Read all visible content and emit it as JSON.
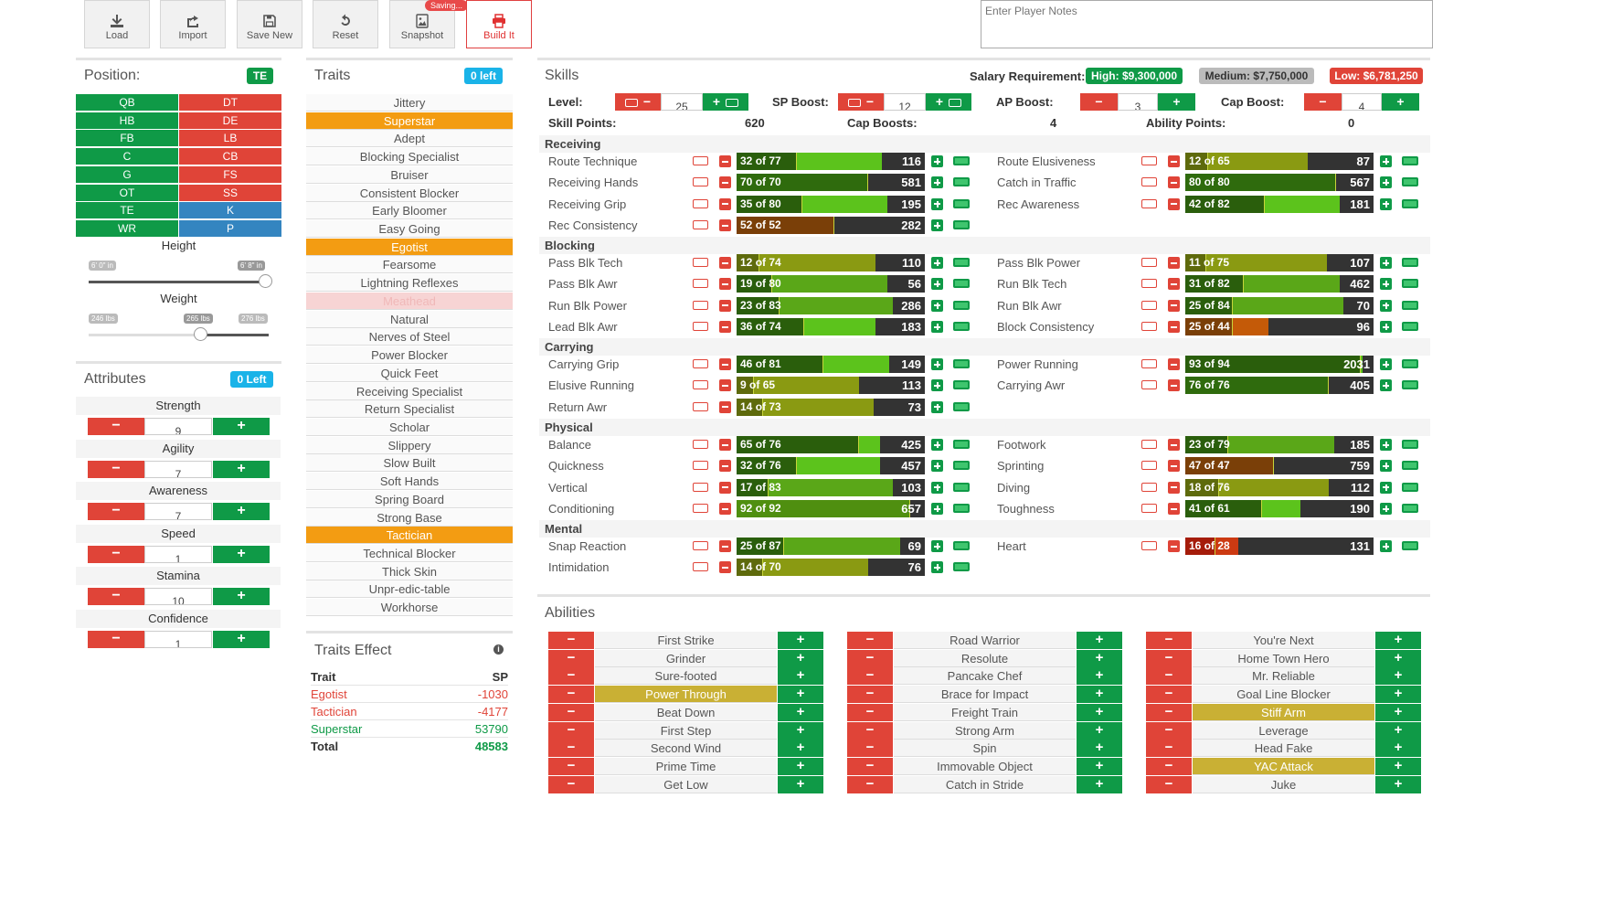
{
  "toolbar": {
    "buttons": [
      {
        "label": "Load",
        "icon": "download-icon"
      },
      {
        "label": "Import",
        "icon": "share-icon"
      },
      {
        "label": "Save New",
        "icon": "floppy-icon"
      },
      {
        "label": "Reset",
        "icon": "undo-icon"
      },
      {
        "label": "Snapshot",
        "icon": "image-icon"
      },
      {
        "label": "Build It",
        "icon": "printer-icon"
      }
    ],
    "saving_badge": "Saving...",
    "notes_placeholder": "Enter Player Notes"
  },
  "position": {
    "title": "Position:",
    "selected": "TE",
    "left": [
      "QB",
      "HB",
      "FB",
      "C",
      "G",
      "OT",
      "TE",
      "WR"
    ],
    "right": [
      "DT",
      "DE",
      "LB",
      "CB",
      "FS",
      "SS",
      "K",
      "P"
    ],
    "height_label": "Height",
    "height_min": "6' 0\" in",
    "height_max": "6' 8\" in",
    "height_fraction": 1.0,
    "weight_label": "Weight",
    "weight_min": "246 lbs",
    "weight_cur": "265 lbs",
    "weight_max": "276 lbs",
    "weight_fraction": 0.62
  },
  "attributes": {
    "title": "Attributes",
    "left_badge": "0 Left",
    "items": [
      {
        "name": "Strength",
        "value": "9"
      },
      {
        "name": "Agility",
        "value": "7"
      },
      {
        "name": "Awareness",
        "value": "7"
      },
      {
        "name": "Speed",
        "value": "1"
      },
      {
        "name": "Stamina",
        "value": "10"
      },
      {
        "name": "Confidence",
        "value": "1"
      }
    ]
  },
  "traits": {
    "title": "Traits",
    "left_badge": "0 left",
    "items": [
      {
        "name": "Jittery",
        "state": "off"
      },
      {
        "name": "Superstar",
        "state": "on"
      },
      {
        "name": "Adept",
        "state": "off"
      },
      {
        "name": "Blocking Specialist",
        "state": "off"
      },
      {
        "name": "Bruiser",
        "state": "off"
      },
      {
        "name": "Consistent Blocker",
        "state": "off"
      },
      {
        "name": "Early Bloomer",
        "state": "off"
      },
      {
        "name": "Easy Going",
        "state": "off"
      },
      {
        "name": "Egotist",
        "state": "on"
      },
      {
        "name": "Fearsome",
        "state": "off"
      },
      {
        "name": "Lightning Reflexes",
        "state": "off"
      },
      {
        "name": "Meathead",
        "state": "disabled"
      },
      {
        "name": "Natural",
        "state": "off"
      },
      {
        "name": "Nerves of Steel",
        "state": "off"
      },
      {
        "name": "Power Blocker",
        "state": "off"
      },
      {
        "name": "Quick Feet",
        "state": "off"
      },
      {
        "name": "Receiving Specialist",
        "state": "off"
      },
      {
        "name": "Return Specialist",
        "state": "off"
      },
      {
        "name": "Scholar",
        "state": "off"
      },
      {
        "name": "Slippery",
        "state": "off"
      },
      {
        "name": "Slow Built",
        "state": "off"
      },
      {
        "name": "Soft Hands",
        "state": "off"
      },
      {
        "name": "Spring Board",
        "state": "off"
      },
      {
        "name": "Strong Base",
        "state": "off"
      },
      {
        "name": "Tactician",
        "state": "on"
      },
      {
        "name": "Technical Blocker",
        "state": "off"
      },
      {
        "name": "Thick Skin",
        "state": "off"
      },
      {
        "name": "Unpr-edic-table",
        "state": "off"
      },
      {
        "name": "Workhorse",
        "state": "off"
      }
    ]
  },
  "traits_effect": {
    "title": "Traits Effect",
    "col_trait": "Trait",
    "col_sp": "SP",
    "rows": [
      {
        "trait": "Egotist",
        "sp": "-1030",
        "color": "#e04438"
      },
      {
        "trait": "Tactician",
        "sp": "-4177",
        "color": "#e04438"
      },
      {
        "trait": "Superstar",
        "sp": "53790",
        "color": "#0f9a47"
      }
    ],
    "total_label": "Total",
    "total_value": "48583"
  },
  "skills": {
    "title": "Skills",
    "salary_label": "Salary Requirement:",
    "salary_high": "High: $9,300,000",
    "salary_medium": "Medium: $7,750,000",
    "salary_low": "Low: $6,781,250",
    "level_label": "Level:",
    "level_value": "25",
    "sp_boost_label": "SP Boost:",
    "sp_boost_value": "12",
    "ap_boost_label": "AP Boost:",
    "ap_boost_value": "3",
    "cap_boost_label": "Cap Boost:",
    "cap_boost_value": "4",
    "skill_points_label": "Skill Points:",
    "skill_points_value": "620",
    "cap_boosts_label": "Cap Boosts:",
    "cap_boosts_value": "4",
    "ability_points_label": "Ability Points:",
    "ability_points_value": "0",
    "groups": [
      {
        "name": "Receiving",
        "left": [
          {
            "name": "Route Technique",
            "cur": 32,
            "cap": 77,
            "sp": "116"
          },
          {
            "name": "Receiving Hands",
            "cur": 70,
            "cap": 70,
            "sp": "581"
          },
          {
            "name": "Receiving Grip",
            "cur": 35,
            "cap": 80,
            "sp": "195"
          },
          {
            "name": "Rec Consistency",
            "cur": 52,
            "cap": 52,
            "sp": "282"
          }
        ],
        "right": [
          {
            "name": "Route Elusiveness",
            "cur": 12,
            "cap": 65,
            "sp": "87"
          },
          {
            "name": "Catch in Traffic",
            "cur": 80,
            "cap": 80,
            "sp": "567"
          },
          {
            "name": "Rec Awareness",
            "cur": 42,
            "cap": 82,
            "sp": "181"
          }
        ]
      },
      {
        "name": "Blocking",
        "left": [
          {
            "name": "Pass Blk Tech",
            "cur": 12,
            "cap": 74,
            "sp": "110"
          },
          {
            "name": "Pass Blk Awr",
            "cur": 19,
            "cap": 80,
            "sp": "56"
          },
          {
            "name": "Run Blk Power",
            "cur": 23,
            "cap": 83,
            "sp": "286"
          },
          {
            "name": "Lead Blk Awr",
            "cur": 36,
            "cap": 74,
            "sp": "183"
          }
        ],
        "right": [
          {
            "name": "Pass Blk Power",
            "cur": 11,
            "cap": 75,
            "sp": "107"
          },
          {
            "name": "Run Blk Tech",
            "cur": 31,
            "cap": 82,
            "sp": "462"
          },
          {
            "name": "Run Blk Awr",
            "cur": 25,
            "cap": 84,
            "sp": "70"
          },
          {
            "name": "Block Consistency",
            "cur": 25,
            "cap": 44,
            "sp": "96"
          }
        ]
      },
      {
        "name": "Carrying",
        "left": [
          {
            "name": "Carrying Grip",
            "cur": 46,
            "cap": 81,
            "sp": "149"
          },
          {
            "name": "Elusive Running",
            "cur": 9,
            "cap": 65,
            "sp": "113"
          },
          {
            "name": "Return Awr",
            "cur": 14,
            "cap": 73,
            "sp": "73"
          }
        ],
        "right": [
          {
            "name": "Power Running",
            "cur": 93,
            "cap": 94,
            "sp": "2031"
          },
          {
            "name": "Carrying Awr",
            "cur": 76,
            "cap": 76,
            "sp": "405"
          }
        ]
      },
      {
        "name": "Physical",
        "left": [
          {
            "name": "Balance",
            "cur": 65,
            "cap": 76,
            "sp": "425"
          },
          {
            "name": "Quickness",
            "cur": 32,
            "cap": 76,
            "sp": "457"
          },
          {
            "name": "Vertical",
            "cur": 17,
            "cap": 83,
            "sp": "103"
          },
          {
            "name": "Conditioning",
            "cur": 92,
            "cap": 92,
            "sp": "657"
          }
        ],
        "right": [
          {
            "name": "Footwork",
            "cur": 23,
            "cap": 79,
            "sp": "185"
          },
          {
            "name": "Sprinting",
            "cur": 47,
            "cap": 47,
            "sp": "759"
          },
          {
            "name": "Diving",
            "cur": 18,
            "cap": 76,
            "sp": "112"
          },
          {
            "name": "Toughness",
            "cur": 41,
            "cap": 61,
            "sp": "190"
          }
        ]
      },
      {
        "name": "Mental",
        "left": [
          {
            "name": "Snap Reaction",
            "cur": 25,
            "cap": 87,
            "sp": "69"
          },
          {
            "name": "Intimidation",
            "cur": 14,
            "cap": 70,
            "sp": "76"
          }
        ],
        "right": [
          {
            "name": "Heart",
            "cur": 16,
            "cap": 28,
            "sp": "131"
          }
        ]
      }
    ]
  },
  "abilities": {
    "title": "Abilities",
    "columns": [
      [
        {
          "name": "First Strike",
          "on": false
        },
        {
          "name": "Grinder",
          "on": false
        },
        {
          "name": "Sure-footed",
          "on": false
        },
        {
          "name": "Power Through",
          "on": true
        },
        {
          "name": "Beat Down",
          "on": false
        },
        {
          "name": "First Step",
          "on": false
        },
        {
          "name": "Second Wind",
          "on": false
        },
        {
          "name": "Prime Time",
          "on": false
        },
        {
          "name": "Get Low",
          "on": false
        }
      ],
      [
        {
          "name": "Road Warrior",
          "on": false
        },
        {
          "name": "Resolute",
          "on": false
        },
        {
          "name": "Pancake Chef",
          "on": false
        },
        {
          "name": "Brace for Impact",
          "on": false
        },
        {
          "name": "Freight Train",
          "on": false
        },
        {
          "name": "Strong Arm",
          "on": false
        },
        {
          "name": "Spin",
          "on": false
        },
        {
          "name": "Immovable Object",
          "on": false
        },
        {
          "name": "Catch in Stride",
          "on": false
        }
      ],
      [
        {
          "name": "You're Next",
          "on": false
        },
        {
          "name": "Home Town Hero",
          "on": false
        },
        {
          "name": "Mr. Reliable",
          "on": false
        },
        {
          "name": "Goal Line Blocker",
          "on": false
        },
        {
          "name": "Stiff Arm",
          "on": true
        },
        {
          "name": "Leverage",
          "on": false
        },
        {
          "name": "Head Fake",
          "on": false
        },
        {
          "name": "YAC Attack",
          "on": true
        },
        {
          "name": "Juke",
          "on": false
        }
      ]
    ]
  },
  "colors": {
    "green": "#0f9a47",
    "red": "#e04438",
    "blue": "#3485c0",
    "orange": "#f39c12",
    "cyan": "#1ab3e8",
    "gold": "#c9b034"
  }
}
